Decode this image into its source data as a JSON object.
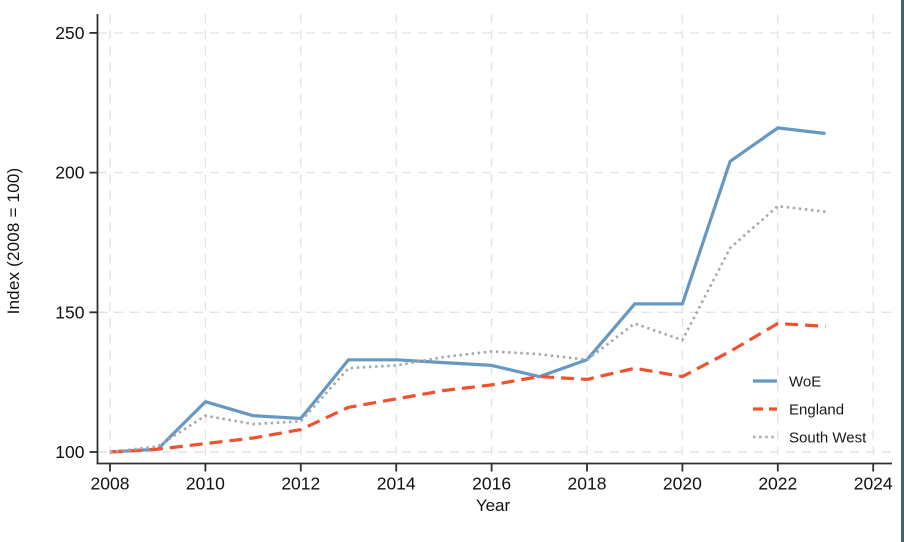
{
  "figure": {
    "background_color": "#ffffff",
    "frame_border_color": "#3E656A"
  },
  "chart_data": {
    "type": "line",
    "title": "",
    "xlabel": "Year",
    "ylabel": "Index (2008 = 100)",
    "x": [
      2008,
      2009,
      2010,
      2011,
      2012,
      2013,
      2014,
      2015,
      2016,
      2017,
      2018,
      2019,
      2020,
      2021,
      2022,
      2023
    ],
    "series": [
      {
        "name": "WoE",
        "color": "#6698C1",
        "line_style": "solid",
        "values": [
          100,
          101,
          118,
          113,
          112,
          133,
          133,
          132,
          131,
          127,
          133,
          153,
          153,
          204,
          216,
          214
        ]
      },
      {
        "name": "England",
        "color": "#F0512F",
        "line_style": "dashed",
        "values": [
          100,
          101,
          103,
          105,
          108,
          116,
          119,
          122,
          124,
          127,
          126,
          130,
          127,
          136,
          146,
          145
        ]
      },
      {
        "name": "South West",
        "color": "#A8A8A8",
        "line_style": "dotted",
        "values": [
          100,
          102,
          113,
          110,
          111,
          130,
          131,
          134,
          136,
          135,
          133,
          146,
          140,
          173,
          188,
          186
        ]
      }
    ],
    "x_ticks": [
      2008,
      2010,
      2012,
      2014,
      2016,
      2018,
      2020,
      2022,
      2024
    ],
    "y_ticks": [
      100,
      150,
      200,
      250
    ],
    "xlim": [
      2008,
      2024.4
    ],
    "ylim": [
      96,
      257
    ],
    "grid": "dashed light gray gridlines on both axes",
    "gridline_color": "#E4E4E4",
    "axis_color": "#303030",
    "tick_label_color": "#111111",
    "legend_position": "inside lower right",
    "legend_border": "none"
  }
}
